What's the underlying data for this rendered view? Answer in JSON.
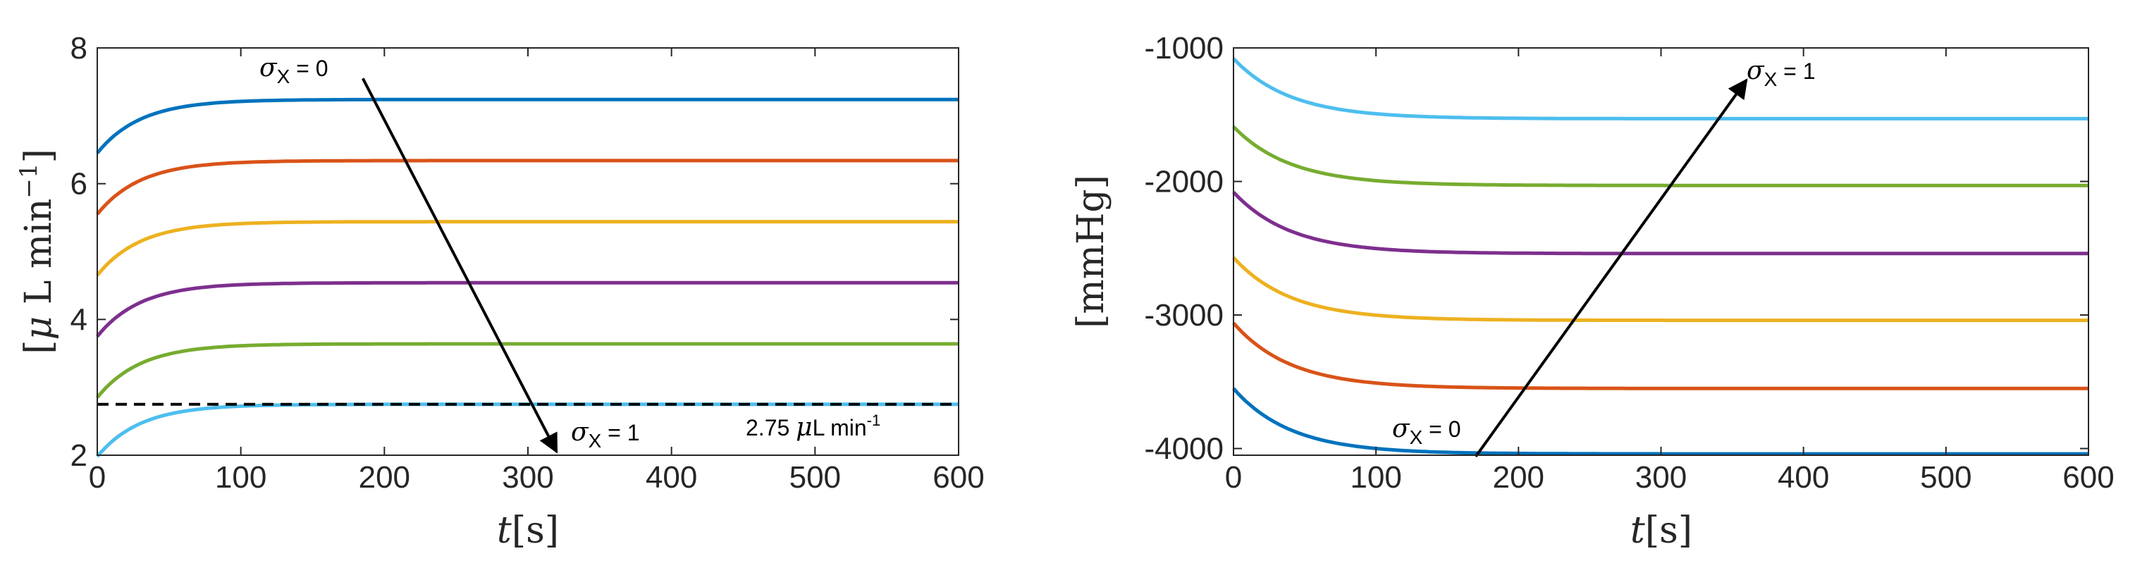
{
  "chart_data": [
    {
      "type": "line",
      "xlabel": "t[s]",
      "ylabel": "[μ L min⁻¹]",
      "xlim": [
        0,
        600
      ],
      "ylim": [
        2,
        8
      ],
      "xticks": [
        "0",
        "100",
        "200",
        "300",
        "400",
        "500",
        "600"
      ],
      "yticks": [
        "2",
        "4",
        "6",
        "8"
      ],
      "grid": false,
      "series": [
        {
          "color": "#0072BD",
          "start": 6.45,
          "end": 7.24,
          "tau": 30
        },
        {
          "color": "#D95319",
          "start": 5.55,
          "end": 6.34,
          "tau": 30
        },
        {
          "color": "#EDB120",
          "start": 4.65,
          "end": 5.44,
          "tau": 30
        },
        {
          "color": "#7E2F8E",
          "start": 3.75,
          "end": 4.54,
          "tau": 30
        },
        {
          "color": "#77AC30",
          "start": 2.85,
          "end": 3.64,
          "tau": 30
        },
        {
          "color": "#4DBEEE",
          "start": 1.98,
          "end": 2.75,
          "tau": 30
        }
      ],
      "reference_line": {
        "y": 2.75,
        "label": "2.75 μL min⁻¹",
        "color": "#000000"
      },
      "annotations": {
        "top": "σX = 0",
        "bottom": "σX = 1",
        "arrow_from": [
          185,
          7.55
        ],
        "arrow_to": [
          320,
          2.05
        ]
      }
    },
    {
      "type": "line",
      "xlabel": "t[s]",
      "ylabel": "[mmHg]",
      "xlim": [
        0,
        600
      ],
      "ylim": [
        -4050,
        -1000
      ],
      "xticks": [
        "0",
        "100",
        "200",
        "300",
        "400",
        "500",
        "600"
      ],
      "yticks": [
        "-4000",
        "-3000",
        "-2000",
        "-1000"
      ],
      "grid": false,
      "series": [
        {
          "color": "#4DBEEE",
          "start": -1080,
          "end": -1530,
          "tau": 40
        },
        {
          "color": "#77AC30",
          "start": -1590,
          "end": -2030,
          "tau": 40
        },
        {
          "color": "#7E2F8E",
          "start": -2080,
          "end": -2540,
          "tau": 40
        },
        {
          "color": "#EDB120",
          "start": -2570,
          "end": -3040,
          "tau": 40
        },
        {
          "color": "#D95319",
          "start": -3060,
          "end": -3550,
          "tau": 40
        },
        {
          "color": "#0072BD",
          "start": -3550,
          "end": -4040,
          "tau": 40
        }
      ],
      "annotations": {
        "top": "σX = 1",
        "bottom": "σX = 0",
        "arrow_from": [
          170,
          -4060
        ],
        "arrow_to": [
          360,
          -1240
        ]
      }
    }
  ]
}
